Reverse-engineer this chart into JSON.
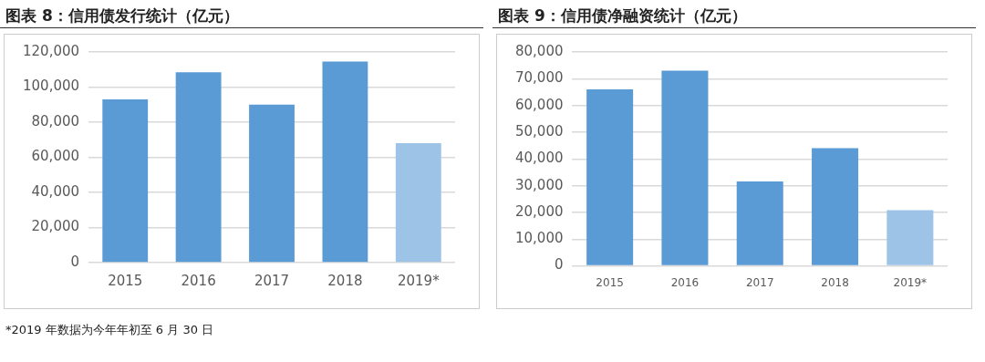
{
  "chart_data": [
    {
      "type": "bar",
      "title": "图表 8：信用债发行统计（亿元）",
      "categories": [
        "2015",
        "2016",
        "2017",
        "2018",
        "2019*"
      ],
      "values": [
        93000,
        108400,
        90000,
        114500,
        68000
      ],
      "colors": [
        "#5b9bd5",
        "#5b9bd5",
        "#5b9bd5",
        "#5b9bd5",
        "#9dc3e6"
      ],
      "ylim": [
        0,
        120000
      ],
      "yticks": [
        {
          "value": 0,
          "label": "0"
        },
        {
          "value": 20000,
          "label": "20,000"
        },
        {
          "value": 40000,
          "label": "40,000"
        },
        {
          "value": 60000,
          "label": "60,000"
        },
        {
          "value": 80000,
          "label": "80,000"
        },
        {
          "value": 100000,
          "label": "100,000"
        },
        {
          "value": 120000,
          "label": "120,000"
        }
      ],
      "grid": "y",
      "legend": false,
      "annotations": [
        "*2019 年数据为今年年初至 6 月 30 日"
      ]
    },
    {
      "type": "bar",
      "title": "图表 9：信用债净融资统计（亿元）",
      "categories": [
        "2015",
        "2016",
        "2017",
        "2018",
        "2019*"
      ],
      "values": [
        66000,
        73000,
        31600,
        44000,
        20800
      ],
      "colors": [
        "#5b9bd5",
        "#5b9bd5",
        "#5b9bd5",
        "#5b9bd5",
        "#9dc3e6"
      ],
      "ylim": [
        0,
        80000
      ],
      "yticks": [
        {
          "value": 0,
          "label": "0"
        },
        {
          "value": 10000,
          "label": "10,000"
        },
        {
          "value": 20000,
          "label": "20,000"
        },
        {
          "value": 30000,
          "label": "30,000"
        },
        {
          "value": 40000,
          "label": "40,000"
        },
        {
          "value": 50000,
          "label": "50,000"
        },
        {
          "value": 60000,
          "label": "60,000"
        },
        {
          "value": 70000,
          "label": "70,000"
        },
        {
          "value": 80000,
          "label": "80,000"
        }
      ],
      "grid": "y",
      "legend": false
    }
  ]
}
